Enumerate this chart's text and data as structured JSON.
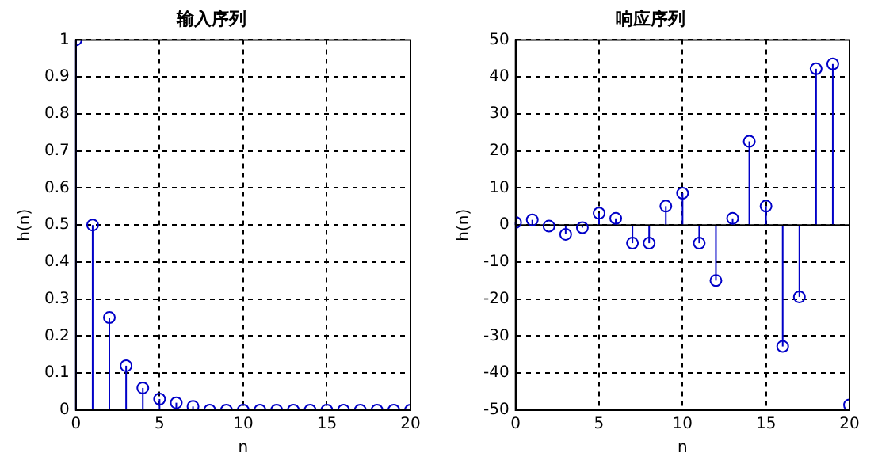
{
  "chart_data": [
    {
      "type": "lollipop",
      "title": "输入序列",
      "xlabel": "n",
      "ylabel": "h(n)",
      "x": [
        0,
        1,
        2,
        3,
        4,
        5,
        6,
        7,
        8,
        9,
        10,
        11,
        12,
        13,
        14,
        15,
        16,
        17,
        18,
        19,
        20
      ],
      "values": [
        1,
        0.5,
        0.25,
        0.12,
        0.06,
        0.03,
        0.02,
        0.01,
        0,
        0,
        0,
        0,
        0,
        0,
        0,
        0,
        0,
        0,
        0,
        0,
        0
      ],
      "color": "#0000c8",
      "marker": "circle",
      "grid": true,
      "xlim": [
        0,
        20
      ],
      "xticks": [
        0,
        5,
        10,
        15,
        20
      ],
      "ylim": [
        0,
        1
      ],
      "yticks": [
        0,
        0.1,
        0.2,
        0.3,
        0.4,
        0.5,
        0.6,
        0.7,
        0.8,
        0.9,
        1
      ],
      "legend": false
    },
    {
      "type": "lollipop",
      "title": "响应序列",
      "xlabel": "n",
      "ylabel": "h(n)",
      "x": [
        0,
        1,
        2,
        3,
        4,
        5,
        6,
        7,
        8,
        9,
        10,
        11,
        12,
        13,
        14,
        15,
        16,
        17,
        18,
        19,
        20
      ],
      "values": [
        0.7,
        1.4,
        -0.3,
        -2.5,
        -0.7,
        3.2,
        1.8,
        -4.9,
        -4.9,
        5.1,
        8.6,
        -4.9,
        -15,
        1.8,
        22.6,
        5.1,
        -32.8,
        -19.4,
        42.2,
        43.5,
        -48.6
      ],
      "color": "#0000c8",
      "marker": "circle",
      "grid": true,
      "xlim": [
        0,
        20
      ],
      "xticks": [
        0,
        5,
        10,
        15,
        20
      ],
      "ylim": [
        -50,
        50
      ],
      "yticks": [
        -50,
        -40,
        -30,
        -20,
        -10,
        0,
        10,
        20,
        30,
        40,
        50
      ],
      "legend": false
    }
  ]
}
